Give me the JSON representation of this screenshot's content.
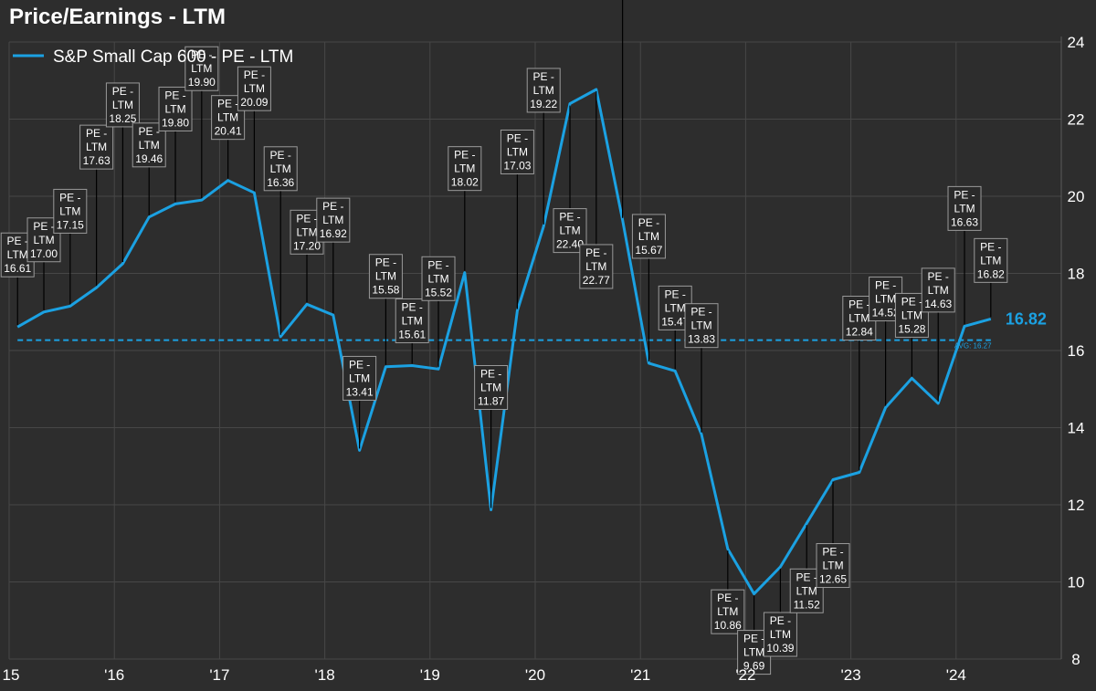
{
  "chart_data": {
    "type": "line",
    "title": "Price/Earnings - LTM",
    "xlabel": "",
    "ylabel": "",
    "ylim": [
      8,
      24
    ],
    "y_ticks": [
      8,
      10,
      12,
      14,
      16,
      18,
      20,
      22,
      24
    ],
    "x_range": [
      2015.0,
      2025.0
    ],
    "x_ticks": [
      {
        "value": 2015,
        "label": "15"
      },
      {
        "value": 2016,
        "label": "'16"
      },
      {
        "value": 2017,
        "label": "'17"
      },
      {
        "value": 2018,
        "label": "'18"
      },
      {
        "value": 2019,
        "label": "'19"
      },
      {
        "value": 2020,
        "label": "'20"
      },
      {
        "value": 2021,
        "label": "'21"
      },
      {
        "value": 2022,
        "label": "'22"
      },
      {
        "value": 2023,
        "label": "'23"
      },
      {
        "value": 2024,
        "label": "'24"
      }
    ],
    "grid": true,
    "legend": "top-left",
    "series": [
      {
        "name": "S&P Small Cap 600 - PE - LTM",
        "color": "#1ba1e2",
        "annotation_prefix": "PE -",
        "annotation_mid": "LTM",
        "points": [
          {
            "x": 2015.08,
            "y": 16.61
          },
          {
            "x": 2015.33,
            "y": 17.0
          },
          {
            "x": 2015.58,
            "y": 17.15
          },
          {
            "x": 2015.83,
            "y": 17.63
          },
          {
            "x": 2016.08,
            "y": 18.25
          },
          {
            "x": 2016.33,
            "y": 19.46
          },
          {
            "x": 2016.58,
            "y": 19.8
          },
          {
            "x": 2016.83,
            "y": 19.9
          },
          {
            "x": 2017.08,
            "y": 20.41
          },
          {
            "x": 2017.33,
            "y": 20.09
          },
          {
            "x": 2017.58,
            "y": 16.36
          },
          {
            "x": 2017.83,
            "y": 17.2
          },
          {
            "x": 2018.08,
            "y": 16.92
          },
          {
            "x": 2018.33,
            "y": 13.41
          },
          {
            "x": 2018.58,
            "y": 15.58
          },
          {
            "x": 2018.83,
            "y": 15.61
          },
          {
            "x": 2019.08,
            "y": 15.52
          },
          {
            "x": 2019.33,
            "y": 18.02
          },
          {
            "x": 2019.58,
            "y": 11.87
          },
          {
            "x": 2019.83,
            "y": 17.03
          },
          {
            "x": 2020.08,
            "y": 19.22
          },
          {
            "x": 2020.33,
            "y": 22.4
          },
          {
            "x": 2020.58,
            "y": 22.77
          },
          {
            "x": 2020.83,
            "y": 19.39
          },
          {
            "x": 2021.08,
            "y": 15.67
          },
          {
            "x": 2021.33,
            "y": 15.47
          },
          {
            "x": 2021.58,
            "y": 13.83
          },
          {
            "x": 2021.83,
            "y": 10.86
          },
          {
            "x": 2022.08,
            "y": 9.69
          },
          {
            "x": 2022.33,
            "y": 10.39
          },
          {
            "x": 2022.58,
            "y": 11.52
          },
          {
            "x": 2022.83,
            "y": 12.65
          },
          {
            "x": 2023.08,
            "y": 12.84
          },
          {
            "x": 2023.33,
            "y": 14.52
          },
          {
            "x": 2023.58,
            "y": 15.28
          },
          {
            "x": 2023.83,
            "y": 14.63
          },
          {
            "x": 2024.08,
            "y": 16.63
          },
          {
            "x": 2024.33,
            "y": 16.82
          }
        ]
      }
    ],
    "average": {
      "value": 16.27,
      "label": "AVG: 16.27",
      "style": "dashed"
    },
    "last_value_label": "16.82"
  }
}
